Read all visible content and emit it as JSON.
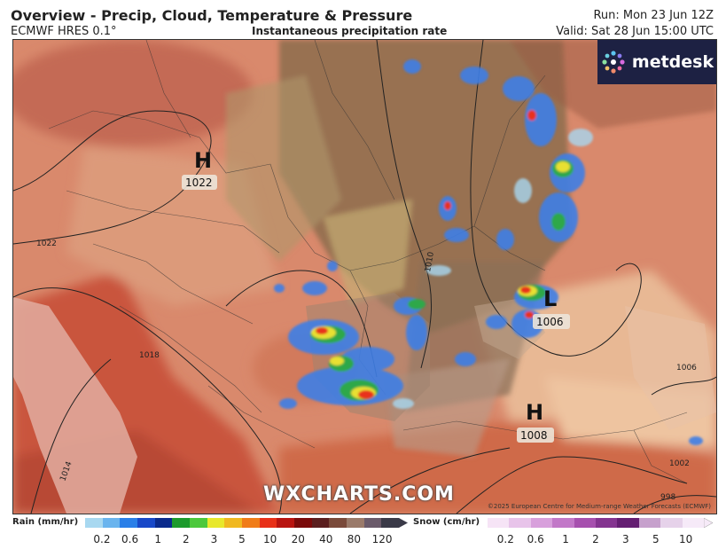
{
  "header": {
    "title": "Overview - Precip, Cloud, Temperature & Pressure",
    "model": "ECMWF HRES 0.1°",
    "field": "Instantaneous precipitation rate",
    "run": "Run: Mon 23 Jun 12Z",
    "valid": "Valid: Sat 28 Jun 15:00 UTC"
  },
  "brand": {
    "name": "metdesk",
    "icon": "metdesk-star-logo-icon"
  },
  "watermark": "WXCHARTS.COM",
  "copyright": "©2025 European Centre for Medium-range Weather Forecasts (ECMWF)",
  "pressure_centers": [
    {
      "type": "H",
      "value": "1022"
    },
    {
      "type": "L",
      "value": "1006"
    },
    {
      "type": "H",
      "value": "1008"
    }
  ],
  "isobar_labels": [
    "1022",
    "1018",
    "1014",
    "1010",
    "1006",
    "1002",
    "998"
  ],
  "legend": {
    "rain": {
      "label": "Rain (mm/hr)",
      "ticks": [
        "0.2",
        "0.6",
        "1",
        "2",
        "3",
        "5",
        "10",
        "20",
        "40",
        "80",
        "120"
      ],
      "colors": [
        "#a8d8f0",
        "#6ab4ee",
        "#2a7fe8",
        "#1848c8",
        "#0a2a8c",
        "#1c9a2c",
        "#4cc83c",
        "#e8e82c",
        "#f0b820",
        "#f07c18",
        "#e83018",
        "#b81410",
        "#7a0a0a",
        "#5a1e1e",
        "#7a4a3a",
        "#9a7a6a",
        "#6a5a6a",
        "#3a3a48"
      ]
    },
    "snow": {
      "label": "Snow (cm/hr)",
      "ticks": [
        "0.2",
        "0.6",
        "1",
        "2",
        "3",
        "5",
        "10"
      ],
      "colors": [
        "#f6e4f6",
        "#e8c4ea",
        "#d8a0dc",
        "#c278c8",
        "#a650ae",
        "#843490",
        "#641e72",
        "#c6a0cc",
        "#e6d2ea",
        "#f6eaf8"
      ]
    }
  },
  "palette": {
    "land_warm": "#d98a6c",
    "land_hot": "#c8583e",
    "sea": "#e4b6a6",
    "cloud": "#8a6a4a",
    "steppe": "#d2a474"
  }
}
